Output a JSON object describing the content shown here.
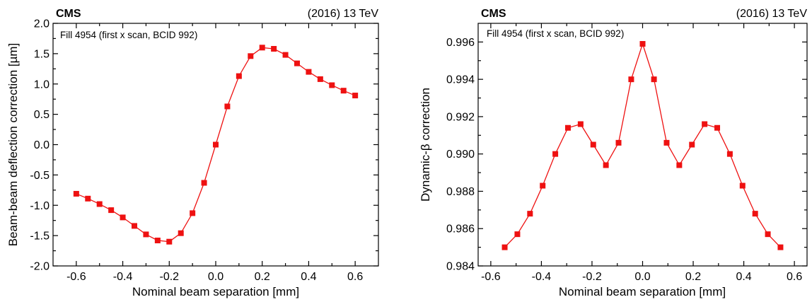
{
  "chart_data": [
    {
      "type": "line",
      "experiment_label": "CMS",
      "energy_label": "(2016) 13 TeV",
      "annotation": "Fill 4954 (first x scan, BCID 992)",
      "xlabel": "Nominal beam separation [mm]",
      "ylabel": "Beam-beam deflection correction [µm]",
      "xlim": [
        -0.7,
        0.7
      ],
      "ylim": [
        -2.0,
        2.0
      ],
      "xticks": [
        "-0.6",
        "-0.4",
        "-0.2",
        "0.0",
        "0.2",
        "0.4",
        "0.6"
      ],
      "xtick_values": [
        -0.6,
        -0.4,
        -0.2,
        0.0,
        0.2,
        0.4,
        0.6
      ],
      "yticks": [
        "-2.0",
        "-1.5",
        "-1.0",
        "-0.5",
        "0.0",
        "0.5",
        "1.0",
        "1.5",
        "2.0"
      ],
      "ytick_values": [
        -2.0,
        -1.5,
        -1.0,
        -0.5,
        0.0,
        0.5,
        1.0,
        1.5,
        2.0
      ],
      "color": "#ee1111",
      "x": [
        -0.6,
        -0.55,
        -0.5,
        -0.45,
        -0.4,
        -0.35,
        -0.3,
        -0.25,
        -0.2,
        -0.15,
        -0.1,
        -0.05,
        0.0,
        0.05,
        0.1,
        0.15,
        0.2,
        0.25,
        0.3,
        0.35,
        0.4,
        0.45,
        0.5,
        0.55,
        0.6
      ],
      "y": [
        -0.81,
        -0.89,
        -0.98,
        -1.08,
        -1.2,
        -1.34,
        -1.48,
        -1.58,
        -1.6,
        -1.46,
        -1.13,
        -0.63,
        0.0,
        0.63,
        1.13,
        1.46,
        1.6,
        1.58,
        1.48,
        1.34,
        1.2,
        1.08,
        0.98,
        0.89,
        0.81
      ]
    },
    {
      "type": "line",
      "experiment_label": "CMS",
      "energy_label": "(2016) 13 TeV",
      "annotation": "Fill 4954 (first x scan, BCID 992)",
      "xlabel": "Nominal beam separation [mm]",
      "ylabel": "Dynamic-β correction",
      "xlim": [
        -0.65,
        0.65
      ],
      "ylim": [
        0.984,
        0.997
      ],
      "xticks": [
        "-0.6",
        "-0.4",
        "-0.2",
        "0.0",
        "0.2",
        "0.4",
        "0.6"
      ],
      "xtick_values": [
        -0.6,
        -0.4,
        -0.2,
        0.0,
        0.2,
        0.4,
        0.6
      ],
      "yticks": [
        "0.984",
        "0.986",
        "0.988",
        "0.990",
        "0.992",
        "0.994",
        "0.996"
      ],
      "ytick_values": [
        0.984,
        0.986,
        0.988,
        0.99,
        0.992,
        0.994,
        0.996
      ],
      "color": "#ee1111",
      "x": [
        -0.545,
        -0.495,
        -0.445,
        -0.395,
        -0.345,
        -0.295,
        -0.245,
        -0.195,
        -0.145,
        -0.095,
        -0.045,
        0.0,
        0.045,
        0.095,
        0.145,
        0.195,
        0.245,
        0.295,
        0.345,
        0.395,
        0.445,
        0.495,
        0.545
      ],
      "y": [
        0.985,
        0.9857,
        0.9868,
        0.9883,
        0.99,
        0.9914,
        0.9916,
        0.9905,
        0.9894,
        0.9906,
        0.994,
        0.9959,
        0.994,
        0.9906,
        0.9894,
        0.9905,
        0.9916,
        0.9914,
        0.99,
        0.9883,
        0.9868,
        0.9857,
        0.985
      ]
    }
  ]
}
